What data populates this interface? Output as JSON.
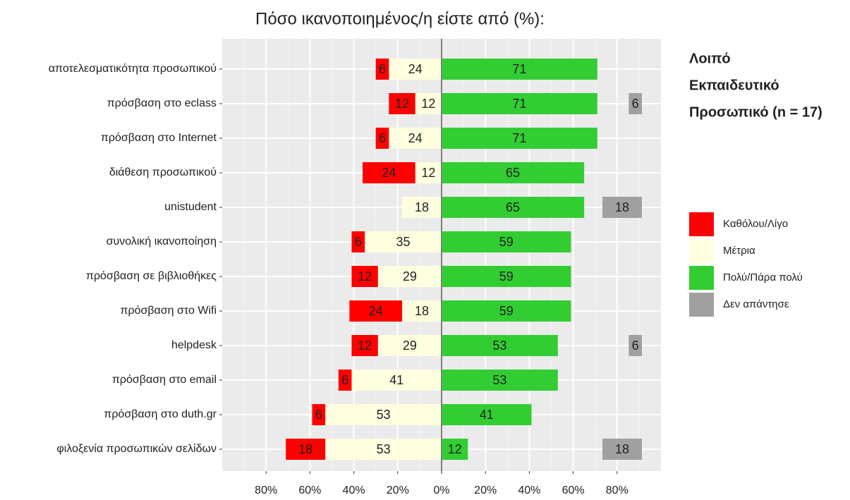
{
  "chart_data": {
    "type": "diverging-bar",
    "title": "Πόσο ικανοποιημένος/η είστε από (%):",
    "annotation": [
      "Λοιπό",
      "Εκπαιδευτικό",
      "Προσωπικό (n = 17)"
    ],
    "categories": [
      "αποτελεσματικότητα προσωπικού",
      "πρόσβαση στο eclass",
      "πρόσβαση στο Internet",
      "διάθεση προσωπικού",
      "unistudent",
      "συνολική ικανοποίηση",
      "πρόσβαση σε βιβλιοθήκες",
      "πρόσβαση στο Wifi",
      "helpdesk",
      "πρόσβαση στο email",
      "πρόσβαση στο duth.gr",
      "φιλοξενία προσωπικών σελίδων"
    ],
    "series": [
      {
        "name": "Καθόλου/Λίγο",
        "color": "#ff0000",
        "side": "left-outer",
        "values": [
          6,
          12,
          6,
          24,
          null,
          6,
          12,
          24,
          12,
          6,
          6,
          18
        ]
      },
      {
        "name": "Μέτρια",
        "color": "#ffffe0",
        "side": "left-inner",
        "values": [
          24,
          12,
          24,
          12,
          18,
          35,
          29,
          18,
          29,
          41,
          53,
          53
        ]
      },
      {
        "name": "Πολύ/Πάρα πολύ",
        "color": "#32cd32",
        "side": "right",
        "values": [
          71,
          71,
          71,
          65,
          65,
          59,
          59,
          59,
          53,
          53,
          41,
          12
        ]
      },
      {
        "name": "Δεν απάντησε",
        "color": "#a0a0a0",
        "side": "far-right",
        "values": [
          null,
          6,
          null,
          null,
          18,
          null,
          null,
          null,
          6,
          null,
          null,
          18
        ]
      }
    ],
    "xlim": [
      -100,
      100
    ],
    "xticks": [
      {
        "value": -80,
        "label": "80%"
      },
      {
        "value": -60,
        "label": "60%"
      },
      {
        "value": -40,
        "label": "40%"
      },
      {
        "value": -20,
        "label": "20%"
      },
      {
        "value": 0,
        "label": "0%"
      },
      {
        "value": 20,
        "label": "20%"
      },
      {
        "value": 40,
        "label": "40%"
      },
      {
        "value": 60,
        "label": "60%"
      },
      {
        "value": 80,
        "label": "80%"
      }
    ],
    "grid": true,
    "legend": "right"
  }
}
